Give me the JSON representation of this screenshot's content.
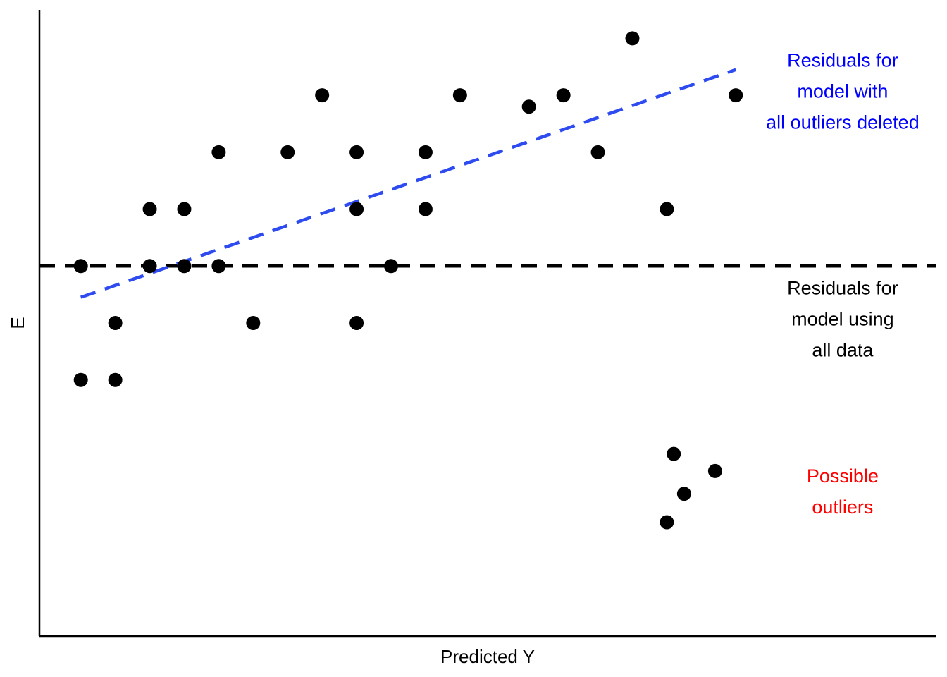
{
  "chart_data": {
    "type": "scatter",
    "xlabel": "Predicted Y",
    "ylabel": "E",
    "xlim": [
      0,
      26
    ],
    "ylim": [
      -6.5,
      4.5
    ],
    "grid": false,
    "points": [
      {
        "x": 1.2,
        "y": 0
      },
      {
        "x": 1.2,
        "y": -2
      },
      {
        "x": 2.2,
        "y": -1
      },
      {
        "x": 2.2,
        "y": -2
      },
      {
        "x": 3.2,
        "y": 1
      },
      {
        "x": 3.2,
        "y": 0
      },
      {
        "x": 4.2,
        "y": 1
      },
      {
        "x": 4.2,
        "y": 0
      },
      {
        "x": 5.2,
        "y": 2
      },
      {
        "x": 5.2,
        "y": 0
      },
      {
        "x": 6.2,
        "y": -1
      },
      {
        "x": 7.2,
        "y": 2
      },
      {
        "x": 8.2,
        "y": 3
      },
      {
        "x": 9.2,
        "y": 2
      },
      {
        "x": 9.2,
        "y": 1
      },
      {
        "x": 9.2,
        "y": -1
      },
      {
        "x": 10.2,
        "y": 0
      },
      {
        "x": 11.2,
        "y": 2
      },
      {
        "x": 11.2,
        "y": 1
      },
      {
        "x": 12.2,
        "y": 3
      },
      {
        "x": 14.2,
        "y": 2.8
      },
      {
        "x": 15.2,
        "y": 3
      },
      {
        "x": 16.2,
        "y": 2
      },
      {
        "x": 17.2,
        "y": 4
      },
      {
        "x": 18.2,
        "y": 1
      },
      {
        "x": 20.2,
        "y": 3
      }
    ],
    "outliers": [
      {
        "x": 18.4,
        "y": -3.3
      },
      {
        "x": 19.6,
        "y": -3.6
      },
      {
        "x": 18.7,
        "y": -4.0
      },
      {
        "x": 18.2,
        "y": -4.5
      }
    ],
    "reference_lines": [
      {
        "name": "all-data",
        "color": "#000000",
        "x": [
          0,
          26
        ],
        "y": [
          0,
          0
        ]
      },
      {
        "name": "outliers-deleted",
        "color": "#2e4bf0",
        "x": [
          1.2,
          20.2
        ],
        "y": [
          -0.55,
          3.45
        ]
      }
    ],
    "annotations": [
      {
        "lines": [
          "Residuals for",
          "model with",
          "all outliers deleted"
        ],
        "x": 23.3,
        "y": 3.5,
        "color": "#0000ff"
      },
      {
        "lines": [
          "Residuals for",
          "model using",
          "all data"
        ],
        "x": 23.3,
        "y": -0.5,
        "color": "#000000"
      },
      {
        "lines": [
          "Possible",
          "outliers"
        ],
        "x": 23.3,
        "y": -3.8,
        "color": "#ff0000"
      }
    ],
    "point_color": "#000000"
  }
}
